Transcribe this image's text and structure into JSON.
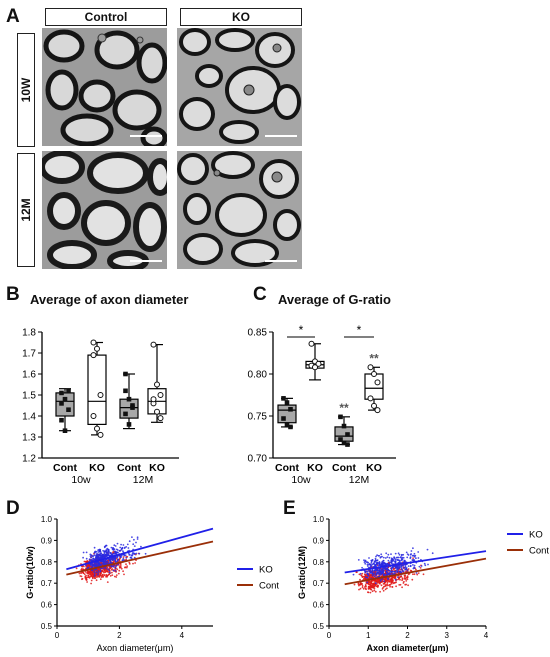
{
  "panel_letters": {
    "a": "A",
    "b": "B",
    "c": "C",
    "d": "D",
    "e": "E"
  },
  "panelA": {
    "columns": [
      "Control",
      "KO"
    ],
    "rows": [
      "10W",
      "12M"
    ]
  },
  "panelB": {
    "title": "Average of axon diameter"
  },
  "panelC": {
    "title": "Average of G-ratio"
  },
  "chart_data": [
    {
      "panel": "B",
      "type": "box",
      "title": "Average of axon diameter",
      "categories": [
        "Cont",
        "KO",
        "Cont",
        "KO"
      ],
      "groups": [
        "10w",
        "12M"
      ],
      "ylim": [
        1.2,
        1.8
      ],
      "yticks": [
        1.2,
        1.3,
        1.4,
        1.5,
        1.6,
        1.7,
        1.8
      ],
      "boxes": [
        {
          "min": 1.33,
          "q1": 1.4,
          "median": 1.47,
          "q3": 1.51,
          "max": 1.53
        },
        {
          "min": 1.31,
          "q1": 1.36,
          "median": 1.47,
          "q3": 1.69,
          "max": 1.75
        },
        {
          "min": 1.34,
          "q1": 1.39,
          "median": 1.44,
          "q3": 1.48,
          "max": 1.6
        },
        {
          "min": 1.37,
          "q1": 1.41,
          "median": 1.47,
          "q3": 1.53,
          "max": 1.74
        }
      ],
      "points": [
        [
          1.51,
          1.48,
          1.43,
          1.38,
          1.33,
          1.52,
          1.46
        ],
        [
          1.75,
          1.72,
          1.5,
          1.4,
          1.34,
          1.31,
          1.69
        ],
        [
          1.6,
          1.48,
          1.45,
          1.41,
          1.36,
          1.44,
          1.52
        ],
        [
          1.74,
          1.55,
          1.5,
          1.46,
          1.42,
          1.39,
          1.48
        ]
      ]
    },
    {
      "panel": "C",
      "type": "box",
      "title": "Average of G-ratio",
      "categories": [
        "Cont",
        "KO",
        "Cont",
        "KO"
      ],
      "groups": [
        "10w",
        "12M"
      ],
      "ylim": [
        0.7,
        0.85
      ],
      "yticks": [
        0.7,
        0.75,
        0.8,
        0.85
      ],
      "boxes": [
        {
          "min": 0.737,
          "q1": 0.742,
          "median": 0.757,
          "q3": 0.763,
          "max": 0.771
        },
        {
          "min": 0.793,
          "q1": 0.807,
          "median": 0.811,
          "q3": 0.815,
          "max": 0.836
        },
        {
          "min": 0.716,
          "q1": 0.72,
          "median": 0.726,
          "q3": 0.737,
          "max": 0.749
        },
        {
          "min": 0.757,
          "q1": 0.77,
          "median": 0.783,
          "q3": 0.8,
          "max": 0.808
        }
      ],
      "points": [
        [
          0.771,
          0.766,
          0.758,
          0.747,
          0.74,
          0.737
        ],
        [
          0.836,
          0.815,
          0.812,
          0.81,
          0.808
        ],
        [
          0.749,
          0.738,
          0.728,
          0.722,
          0.718,
          0.716
        ],
        [
          0.808,
          0.8,
          0.79,
          0.771,
          0.762,
          0.757
        ]
      ],
      "annotations": [
        {
          "text": "*",
          "between": [
            0,
            1
          ]
        },
        {
          "text": "*",
          "between": [
            2,
            3
          ]
        },
        {
          "text": "**",
          "above": 2
        },
        {
          "text": "**",
          "above": 3
        }
      ]
    },
    {
      "panel": "D",
      "type": "scatter",
      "xlabel": "Axon diameter(μm)",
      "ylabel": "G-ratio(10w)",
      "xlim": [
        0,
        5
      ],
      "ylim": [
        0.5,
        1.0
      ],
      "xticks": [
        0,
        2,
        4
      ],
      "yticks": [
        0.5,
        0.6,
        0.7,
        0.8,
        0.9,
        1.0
      ],
      "legend_position": "right",
      "series": [
        {
          "name": "KO",
          "color": "#2a2ae0",
          "fit": {
            "x": [
              0.3,
              5.0
            ],
            "y": [
              0.765,
              0.955
            ]
          },
          "cloud": {
            "x": [
              0.3,
              3.5
            ],
            "y": [
              0.65,
              0.99
            ],
            "center": [
              1.4,
              0.83
            ]
          }
        },
        {
          "name": "Cont",
          "color": "#e01818",
          "fit": {
            "x": [
              0.3,
              5.0
            ],
            "y": [
              0.74,
              0.895
            ]
          },
          "cloud": {
            "x": [
              0.3,
              5.0
            ],
            "y": [
              0.52,
              0.95
            ],
            "center": [
              1.2,
              0.76
            ]
          }
        }
      ]
    },
    {
      "panel": "E",
      "type": "scatter",
      "xlabel": "Axon diameter(μm)",
      "ylabel": "G-ratio(12M)",
      "xlim": [
        0,
        4
      ],
      "ylim": [
        0.5,
        1.0
      ],
      "xticks": [
        0,
        1,
        2,
        3,
        4
      ],
      "yticks": [
        0.5,
        0.6,
        0.7,
        0.8,
        0.9,
        1.0
      ],
      "legend_position": "right",
      "series": [
        {
          "name": "KO",
          "color": "#2a2ae0",
          "fit": {
            "x": [
              0.4,
              4.0
            ],
            "y": [
              0.75,
              0.85
            ]
          },
          "cloud": {
            "x": [
              0.4,
              3.5
            ],
            "y": [
              0.65,
              0.93
            ],
            "center": [
              1.3,
              0.81
            ]
          }
        },
        {
          "name": "Cont",
          "color": "#e01818",
          "fit": {
            "x": [
              0.4,
              4.0
            ],
            "y": [
              0.695,
              0.815
            ]
          },
          "cloud": {
            "x": [
              0.4,
              4.0
            ],
            "y": [
              0.55,
              0.9
            ],
            "center": [
              1.2,
              0.73
            ]
          }
        }
      ]
    }
  ],
  "colors": {
    "box_fill_cont": "#a8a8a8",
    "box_fill_ko": "#ffffff",
    "ko": "#2a2ae0",
    "cont": "#e01818",
    "fit_cont": "#9a2f08",
    "fit_ko": "#2020e8"
  }
}
